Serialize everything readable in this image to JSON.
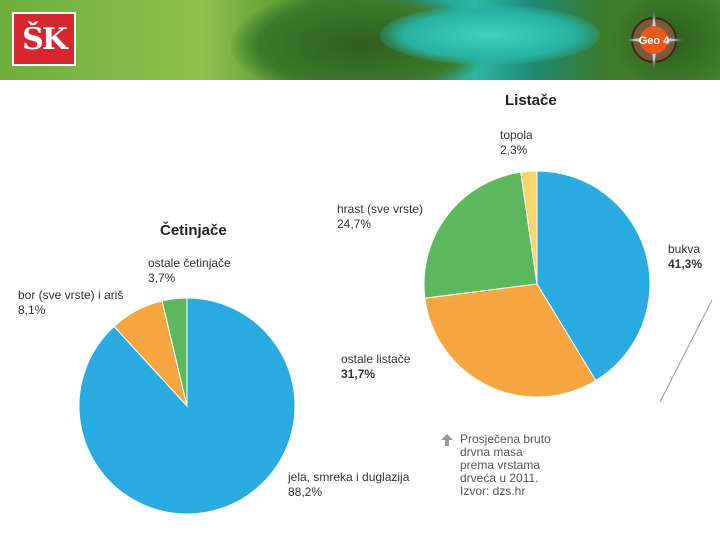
{
  "header": {
    "logo_text": "ŠK",
    "badge_text": "Geo 4",
    "colors": {
      "logo": "#d7262d",
      "badge": "#e85a1c"
    }
  },
  "chart_data": [
    {
      "type": "pie",
      "title": "Četinjače",
      "slices": [
        {
          "label": "jela, smreka i duglazija",
          "value": 88.2,
          "value_label": "88,2%",
          "color": "#29abe2"
        },
        {
          "label": "bor (sve vrste) i ariš",
          "value": 8.1,
          "value_label": "8,1%",
          "color": "#f7a541"
        },
        {
          "label": "ostale četinjače",
          "value": 3.7,
          "value_label": "3,7%",
          "color": "#5cb85c"
        }
      ]
    },
    {
      "type": "pie",
      "title": "Listače",
      "slices": [
        {
          "label": "bukva",
          "value": 41.3,
          "value_label": "41,3%",
          "color": "#29abe2"
        },
        {
          "label": "ostale listače",
          "value": 31.7,
          "value_label": "31,7%",
          "color": "#f7a541"
        },
        {
          "label": "hrast (sve vrste)",
          "value": 24.7,
          "value_label": "24,7%",
          "color": "#5cb85c"
        },
        {
          "label": "topola",
          "value": 2.3,
          "value_label": "2,3%",
          "color": "#f9d56e"
        }
      ]
    }
  ],
  "note": {
    "lines": [
      "Prosječena bruto",
      "drvna masa",
      "prema vrstama",
      "drveća u 2011.",
      "Izvor: dzs.hr"
    ]
  }
}
